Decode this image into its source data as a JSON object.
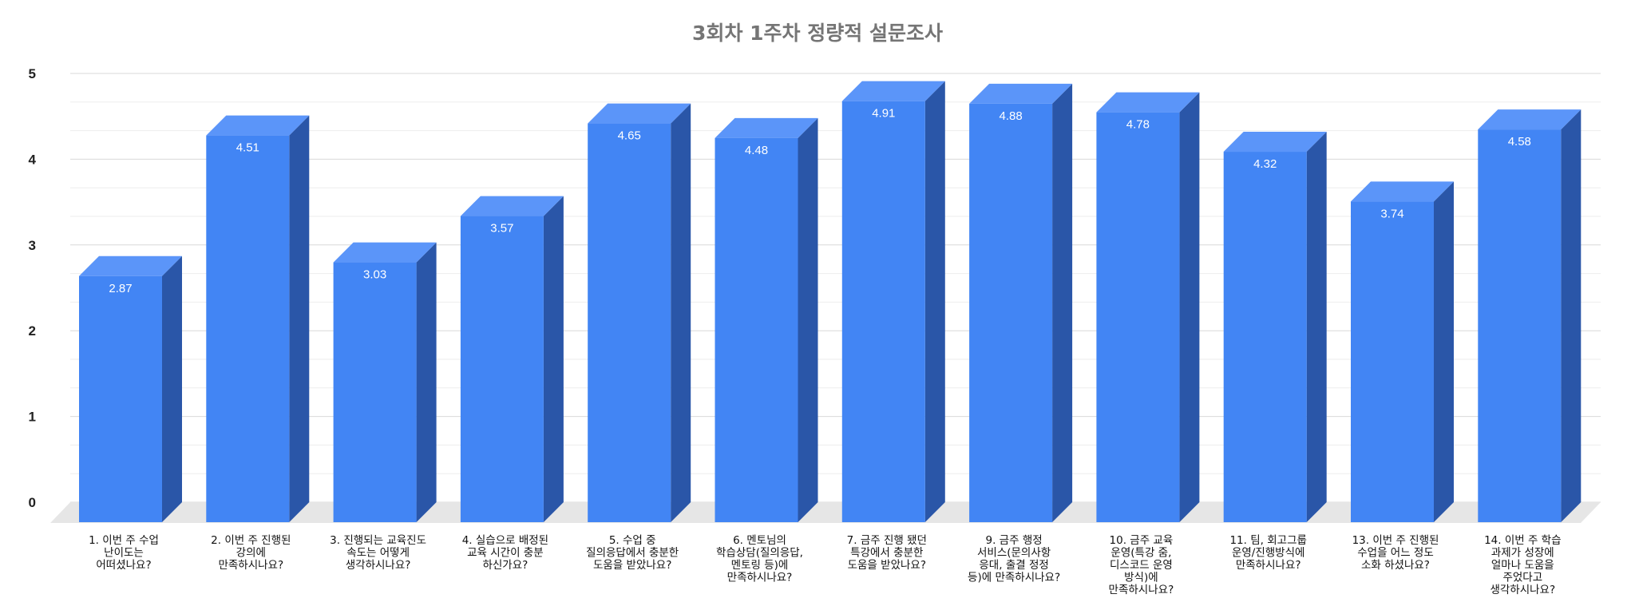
{
  "chart_data": {
    "type": "bar",
    "title": "3회차 1주차 정량적 설문조사",
    "categories": [
      "1. 이번 주 수업\n난이도는\n어떠셨나요?",
      "2. 이번 주 진행된\n강의에\n만족하시나요?",
      "3. 진행되는 교육진도\n속도는 어떻게\n생각하시나요?",
      "4. 실습으로 배정된\n교육 시간이 충분\n하신가요?",
      "5. 수업 중\n질의응답에서 충분한\n도움을 받았나요?",
      "6. 멘토님의\n학습상담(질의응답,\n멘토링 등)에\n만족하시나요?",
      "7. 금주 진행 됐던\n특강에서 충분한\n도움을 받았나요?",
      "9. 금주 행정\n서비스(문의사항\n응대, 출결 정정\n등)에 만족하시나요?",
      "10. 금주 교육\n운영(특강 줌,\n디스코드 운영\n방식)에\n만족하시나요?",
      "11. 팀, 회고그룹\n운영/진행방식에\n만족하시나요?",
      "13. 이번 주 진행된\n수업을 어느 정도\n소화 하셨나요?",
      "14. 이번 주 학습\n과제가 성장에\n얼마나 도움을\n주었다고\n생각하시나요?"
    ],
    "values": [
      2.87,
      4.51,
      3.03,
      3.57,
      4.65,
      4.48,
      4.91,
      4.88,
      4.78,
      4.32,
      3.74,
      4.58
    ],
    "data_labels": [
      "2.87",
      "4.51",
      "3.03",
      "3.57",
      "4.65",
      "4.48",
      "4.91",
      "4.88",
      "4.78",
      "4.32",
      "3.74",
      "4.58"
    ],
    "ylim": [
      0,
      5
    ],
    "yticks": [
      "0",
      "1",
      "2",
      "3",
      "4",
      "5"
    ],
    "grid": true,
    "legend": "none",
    "style": "3d-bar",
    "colors": {
      "front": "#4285f4",
      "top": "#5b95f9",
      "side": "#2a56a8",
      "floor": "#e6e6e6",
      "grid": "#d9d9d9",
      "minor_grid": "#ededed"
    }
  }
}
